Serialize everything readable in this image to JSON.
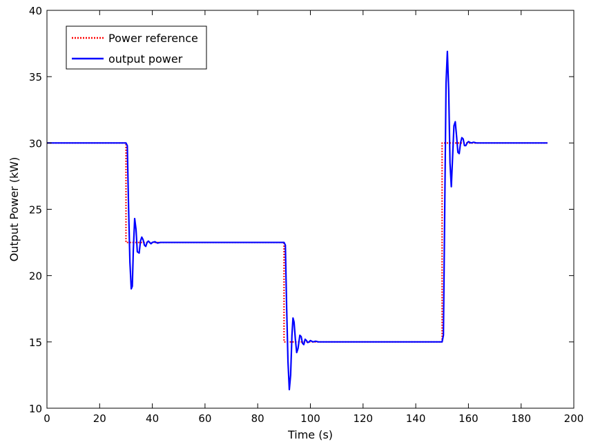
{
  "chart_data": {
    "type": "line",
    "xlabel": "Time (s)",
    "ylabel": "Output Power (kW)",
    "xlim": [
      0,
      200
    ],
    "ylim": [
      10,
      40
    ],
    "xticks": [
      0,
      20,
      40,
      60,
      80,
      100,
      120,
      140,
      160,
      180,
      200
    ],
    "yticks": [
      10,
      15,
      20,
      25,
      30,
      35,
      40
    ],
    "grid": false,
    "legend_position": "top-left",
    "series": [
      {
        "name": "Power reference",
        "color": "#ff0000",
        "style": "dotted",
        "x": [
          0,
          30,
          30,
          90,
          90,
          150,
          150,
          190
        ],
        "y": [
          30,
          30,
          22.5,
          22.5,
          15,
          15,
          30,
          30
        ]
      },
      {
        "name": "output power",
        "color": "#0000ff",
        "style": "solid",
        "x": [
          0,
          30,
          30.5,
          31,
          31.5,
          32,
          32.4,
          32.8,
          33.3,
          33.8,
          34.3,
          35,
          35.5,
          36,
          36.5,
          37,
          37.5,
          38,
          38.5,
          39,
          39.5,
          40,
          41,
          42,
          43,
          44,
          90,
          90.5,
          91,
          91.5,
          92,
          92.5,
          93,
          93.4,
          93.8,
          94.3,
          94.8,
          95.3,
          96,
          96.5,
          97,
          97.5,
          98,
          98.5,
          99,
          99.5,
          100,
          101,
          102,
          103,
          104,
          150,
          150.5,
          151,
          151.5,
          152,
          152.5,
          153,
          153.5,
          154,
          154.5,
          155,
          155.5,
          156,
          156.5,
          157,
          157.5,
          158,
          158.5,
          159,
          159.5,
          160,
          161,
          162,
          163,
          190
        ],
        "y": [
          30,
          30,
          29.8,
          25,
          21,
          19,
          19.2,
          22,
          24.3,
          23.5,
          21.8,
          21.7,
          22.6,
          22.9,
          22.7,
          22.3,
          22.2,
          22.5,
          22.6,
          22.5,
          22.4,
          22.5,
          22.55,
          22.45,
          22.5,
          22.5,
          22.5,
          22.3,
          17.5,
          13.5,
          11.4,
          12.5,
          15.5,
          16.8,
          16.5,
          15.2,
          14.2,
          14.5,
          15.5,
          15.4,
          14.9,
          14.8,
          15.2,
          15.1,
          14.95,
          15,
          15.1,
          15,
          15.05,
          15,
          15,
          15,
          15.5,
          25,
          34.5,
          36.9,
          34,
          28.5,
          26.7,
          29,
          31.3,
          31.6,
          30.5,
          29.3,
          29.2,
          30,
          30.4,
          30.3,
          29.8,
          29.8,
          30,
          30.1,
          30,
          30.05,
          30,
          30
        ]
      }
    ]
  }
}
